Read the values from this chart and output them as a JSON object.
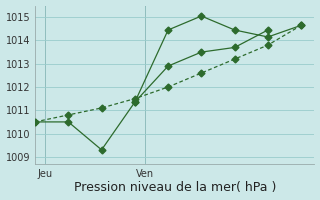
{
  "bg_color": "#cce8e8",
  "grid_color": "#99cccc",
  "line_color": "#2d6b2d",
  "marker_color": "#2d6b2d",
  "line1_x": [
    0,
    1,
    2,
    3,
    4,
    5,
    6,
    7
  ],
  "line1_y": [
    1010.5,
    1010.5,
    1009.3,
    1011.35,
    1012.9,
    1013.5,
    1013.7,
    1014.45
  ],
  "line2_x": [
    0,
    1,
    2,
    3,
    4,
    5,
    6,
    7,
    8
  ],
  "line2_y": [
    1010.5,
    1010.8,
    1011.1,
    1011.5,
    1012.0,
    1012.6,
    1013.2,
    1013.8,
    1014.65
  ],
  "line3_x": [
    3,
    4,
    5,
    6,
    7,
    8
  ],
  "line3_y": [
    1011.35,
    1014.45,
    1015.05,
    1014.45,
    1014.15,
    1014.65
  ],
  "yticks": [
    1009,
    1010,
    1011,
    1012,
    1013,
    1014,
    1015
  ],
  "ylim": [
    1008.7,
    1015.5
  ],
  "xlim": [
    0,
    8.4
  ],
  "vline1_x": 0.3,
  "vline2_x": 3.3,
  "xlabel": "Pression niveau de la mer( hPa )",
  "xtick_labels": [
    "Jeu",
    "Ven"
  ],
  "xtick_positions": [
    0.3,
    3.3
  ],
  "xlabel_fontsize": 9,
  "tick_fontsize": 7,
  "ytick_fontsize": 7
}
